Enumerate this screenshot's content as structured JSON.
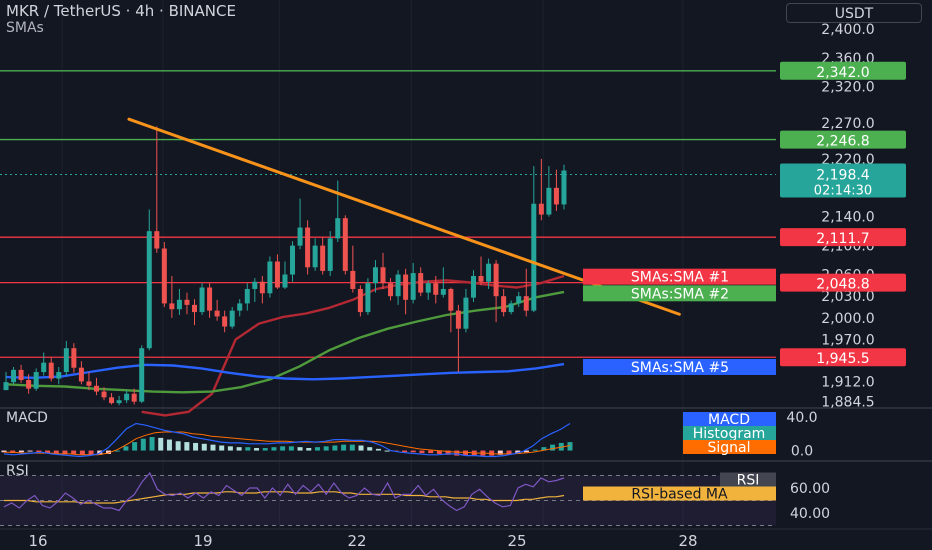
{
  "header": {
    "symbol_line": "MKR / TetherUS · 4h · BINANCE",
    "indicator": "SMAs"
  },
  "currency_button": "USDT",
  "colors": {
    "background": "#131722",
    "up": "#26a69a",
    "down": "#ef5350",
    "trendline": "#f7931a",
    "sma1": "#b22833",
    "sma2": "#4e9a3c",
    "sma5": "#2962ff",
    "rsi": "#7e57c2",
    "rsi_ma": "#f2b33d"
  },
  "chart_data": [
    {
      "type": "candlestick",
      "title": "MKR / TetherUS · 4h · BINANCE",
      "x_tick_labels": [
        "16",
        "19",
        "22",
        "25",
        "28"
      ],
      "y_tick_labels": [
        "1,884.5",
        "1,912.0",
        "1,970.0",
        "2,000.0",
        "2,030.0",
        "2,060.0",
        "2,100.0",
        "2,140.0",
        "2,220.0",
        "2,270.0",
        "2,320.0",
        "2,360.0",
        "2,400.0"
      ],
      "ylim": [
        1878,
        2440
      ],
      "candles": [
        [
          1900,
          1911,
          1925,
          1900
        ],
        [
          1911,
          1928,
          1932,
          1908
        ],
        [
          1928,
          1914,
          1935,
          1910
        ],
        [
          1914,
          1902,
          1922,
          1895
        ],
        [
          1902,
          1925,
          1930,
          1899
        ],
        [
          1925,
          1938,
          1952,
          1920
        ],
        [
          1938,
          1916,
          1946,
          1912
        ],
        [
          1916,
          1925,
          1932,
          1908
        ],
        [
          1925,
          1958,
          1968,
          1920
        ],
        [
          1958,
          1931,
          1965,
          1924
        ],
        [
          1931,
          1912,
          1940,
          1908
        ],
        [
          1912,
          1906,
          1925,
          1900
        ],
        [
          1906,
          1898,
          1917,
          1893
        ],
        [
          1898,
          1890,
          1904,
          1886
        ],
        [
          1890,
          1882,
          1896,
          1880
        ],
        [
          1882,
          1886,
          1892,
          1879
        ],
        [
          1886,
          1895,
          1900,
          1882
        ],
        [
          1895,
          1884,
          1902,
          1880
        ],
        [
          1884,
          1958,
          1962,
          1882
        ],
        [
          1958,
          2120,
          2150,
          1955
        ],
        [
          2120,
          2096,
          2265,
          2090
        ],
        [
          2096,
          2020,
          2105,
          2015
        ],
        [
          2020,
          2012,
          2058,
          2000
        ],
        [
          2012,
          2025,
          2040,
          2004
        ],
        [
          2025,
          2018,
          2035,
          2005
        ],
        [
          2018,
          2008,
          2026,
          1990
        ],
        [
          2008,
          2042,
          2048,
          2004
        ],
        [
          2042,
          2010,
          2048,
          2000
        ],
        [
          2010,
          2002,
          2025,
          1996
        ],
        [
          2002,
          1988,
          2010,
          1980
        ],
        [
          1988,
          2010,
          2015,
          1985
        ],
        [
          2010,
          2020,
          2026,
          2002
        ],
        [
          2020,
          2040,
          2048,
          2010
        ],
        [
          2040,
          2050,
          2055,
          2022
        ],
        [
          2050,
          2034,
          2058,
          2020
        ],
        [
          2034,
          2078,
          2085,
          2028
        ],
        [
          2078,
          2042,
          2088,
          2040
        ],
        [
          2042,
          2060,
          2078,
          2040
        ],
        [
          2060,
          2100,
          2106,
          2050
        ],
        [
          2100,
          2125,
          2165,
          2095
        ],
        [
          2125,
          2070,
          2135,
          2060
        ],
        [
          2070,
          2100,
          2110,
          2065
        ],
        [
          2100,
          2065,
          2112,
          2060
        ],
        [
          2065,
          2110,
          2120,
          2058
        ],
        [
          2110,
          2138,
          2190,
          2105
        ],
        [
          2138,
          2065,
          2142,
          2060
        ],
        [
          2065,
          2040,
          2100,
          2035
        ],
        [
          2040,
          2008,
          2045,
          2002
        ],
        [
          2008,
          2048,
          2055,
          2004
        ],
        [
          2048,
          2070,
          2080,
          2035
        ],
        [
          2070,
          2048,
          2090,
          2040
        ],
        [
          2048,
          2030,
          2055,
          2024
        ],
        [
          2030,
          2060,
          2066,
          2018
        ],
        [
          2060,
          2025,
          2068,
          2005
        ],
        [
          2025,
          2062,
          2076,
          2020
        ],
        [
          2062,
          2035,
          2070,
          2030
        ],
        [
          2035,
          2048,
          2052,
          2025
        ],
        [
          2048,
          2032,
          2058,
          2020
        ],
        [
          2032,
          2040,
          2070,
          2028
        ],
        [
          2040,
          2010,
          2042,
          1980
        ],
        [
          2010,
          1985,
          2018,
          1925
        ],
        [
          1985,
          2028,
          2040,
          1980
        ],
        [
          2028,
          2058,
          2066,
          2022
        ],
        [
          2058,
          2050,
          2085,
          2045
        ],
        [
          2050,
          2075,
          2082,
          2040
        ],
        [
          2075,
          2030,
          2080,
          1994
        ],
        [
          2030,
          2008,
          2040,
          2002
        ],
        [
          2008,
          2020,
          2024,
          2005
        ],
        [
          2020,
          2030,
          2036,
          2015
        ],
        [
          2030,
          2010,
          2068,
          2002
        ],
        [
          2010,
          2158,
          2210,
          2008
        ],
        [
          2158,
          2143,
          2220,
          2135
        ],
        [
          2143,
          2180,
          2210,
          2140
        ],
        [
          2180,
          2157,
          2205,
          2148
        ],
        [
          2157,
          2204,
          2212,
          2150
        ]
      ],
      "horizontal_levels": [
        {
          "value": 2342.0,
          "label": "2,342.0",
          "color": "#4caf50"
        },
        {
          "value": 2246.8,
          "label": "2,246.8",
          "color": "#4caf50"
        },
        {
          "value": 2111.7,
          "label": "2,111.7",
          "color": "#f23645"
        },
        {
          "value": 2048.8,
          "label": "2,048.8",
          "color": "#f23645"
        },
        {
          "value": 1945.5,
          "label": "1,945.5",
          "color": "#f23645"
        }
      ],
      "last_price": {
        "value": 2198.4,
        "label": "2,198.4",
        "countdown": "02:14:30"
      },
      "trendline": {
        "start": {
          "candle": 11,
          "value": 2275
        },
        "end": {
          "candle": 84,
          "value": 2005
        }
      },
      "sma_tags": [
        {
          "label": "SMAs:SMA #1",
          "value": 2057,
          "color": "#f23645"
        },
        {
          "label": "SMAs:SMA #2",
          "value": 2034,
          "color": "#4caf50"
        },
        {
          "label": "SMAs:SMA #5",
          "value": 1932,
          "color": "#2962ff"
        }
      ],
      "series": [
        {
          "values": [
            1870,
            1865,
            1870,
            1895,
            1970,
            1992,
            2001,
            2006,
            2014,
            2025,
            2040,
            2046,
            2050,
            2052,
            2049,
            2045,
            2042,
            2048,
            2058
          ]
        },
        {
          "values": [
            1908,
            1906,
            1905,
            1902,
            1900,
            1898,
            1897,
            1898,
            1904,
            1915,
            1933,
            1955,
            1972,
            1985,
            1995,
            2004,
            2010,
            2015,
            2028,
            2036
          ]
        },
        {
          "values": [
            1918,
            1917,
            1919,
            1925,
            1931,
            1935,
            1934,
            1930,
            1924,
            1919,
            1916,
            1915,
            1916,
            1918,
            1920,
            1922,
            1924,
            1925,
            1926,
            1930,
            1936
          ]
        }
      ]
    },
    {
      "type": "bar",
      "title": "MACD",
      "y_tick_labels": [
        "40.0",
        "0.0"
      ],
      "legend": [
        "MACD",
        "Histogram",
        "Signal"
      ],
      "ylim": [
        -10,
        48
      ],
      "histogram": [
        -2,
        -3,
        -2,
        -1,
        -2,
        -3,
        -3,
        -4,
        -4,
        -5,
        -6,
        -5,
        -4,
        0,
        5,
        10,
        14,
        16,
        15,
        13,
        11,
        10,
        9,
        8,
        7,
        6,
        5,
        4,
        4,
        3,
        3,
        4,
        5,
        5,
        4,
        3,
        4,
        5,
        6,
        7,
        7,
        6,
        4,
        2,
        0,
        -1,
        -2,
        -2,
        -3,
        -3,
        -4,
        -5,
        -6,
        -6,
        -6,
        -6,
        -6,
        -5,
        -5,
        -4,
        -2,
        1,
        4,
        7,
        9,
        10
      ],
      "macd": [
        -4,
        -5,
        -4,
        -3,
        -2,
        -4,
        -5,
        -6,
        -7,
        -6,
        -4,
        3,
        14,
        26,
        32,
        30,
        27,
        24,
        22,
        20,
        16,
        14,
        12,
        10,
        9,
        9,
        8,
        8,
        8,
        9,
        9,
        10,
        11,
        10,
        11,
        13,
        13,
        12,
        12,
        10,
        6,
        0,
        -2,
        -3,
        -4,
        -5,
        -5,
        -4,
        -4,
        -6,
        -6,
        -7,
        -7,
        -6,
        -4,
        -1,
        5,
        14,
        20,
        25,
        32
      ],
      "signal": [
        -2,
        -2,
        -3,
        -3,
        -3,
        -3,
        -4,
        -4,
        -5,
        -5,
        -5,
        -3,
        1,
        7,
        14,
        18,
        21,
        22,
        22,
        22,
        20,
        19,
        17,
        16,
        15,
        14,
        13,
        12,
        11,
        11,
        11,
        10,
        10,
        10,
        10,
        10,
        11,
        11,
        11,
        11,
        10,
        8,
        6,
        4,
        2,
        1,
        0,
        -1,
        -2,
        -2,
        -3,
        -3,
        -4,
        -4,
        -4,
        -3,
        -2,
        0,
        2,
        4,
        6
      ]
    },
    {
      "type": "line",
      "title": "RSI",
      "y_tick_labels": [
        "60.00",
        "40.00"
      ],
      "legend": [
        "RSI",
        "RSI-based MA"
      ],
      "ylim": [
        28,
        80
      ],
      "rsi": [
        45,
        48,
        44,
        50,
        54,
        46,
        44,
        49,
        56,
        52,
        47,
        50,
        47,
        44,
        44,
        42,
        50,
        55,
        65,
        72,
        59,
        55,
        54,
        56,
        52,
        56,
        52,
        57,
        54,
        62,
        58,
        54,
        60,
        60,
        52,
        60,
        54,
        63,
        55,
        62,
        57,
        63,
        55,
        64,
        56,
        52,
        54,
        60,
        55,
        54,
        64,
        52,
        55,
        55,
        62,
        54,
        59,
        51,
        46,
        42,
        45,
        55,
        59,
        53,
        48,
        45,
        46,
        60,
        63,
        61,
        68,
        65,
        66,
        68
      ],
      "rsi_ma": [
        50,
        50,
        50,
        50,
        49,
        49,
        49,
        49,
        49,
        49,
        48,
        48,
        48,
        48,
        48,
        49,
        50,
        51,
        52,
        53,
        54,
        55,
        55,
        55,
        56,
        56,
        56,
        56,
        57,
        57,
        56,
        56,
        56,
        57,
        57,
        57,
        57,
        56,
        56,
        56,
        57,
        57,
        57,
        56,
        56,
        55,
        55,
        55,
        55,
        55,
        55,
        54,
        54,
        54,
        53,
        53,
        53,
        52,
        52,
        52,
        51,
        51,
        50,
        50,
        50,
        50,
        51,
        51,
        52,
        53,
        53,
        54
      ]
    }
  ]
}
